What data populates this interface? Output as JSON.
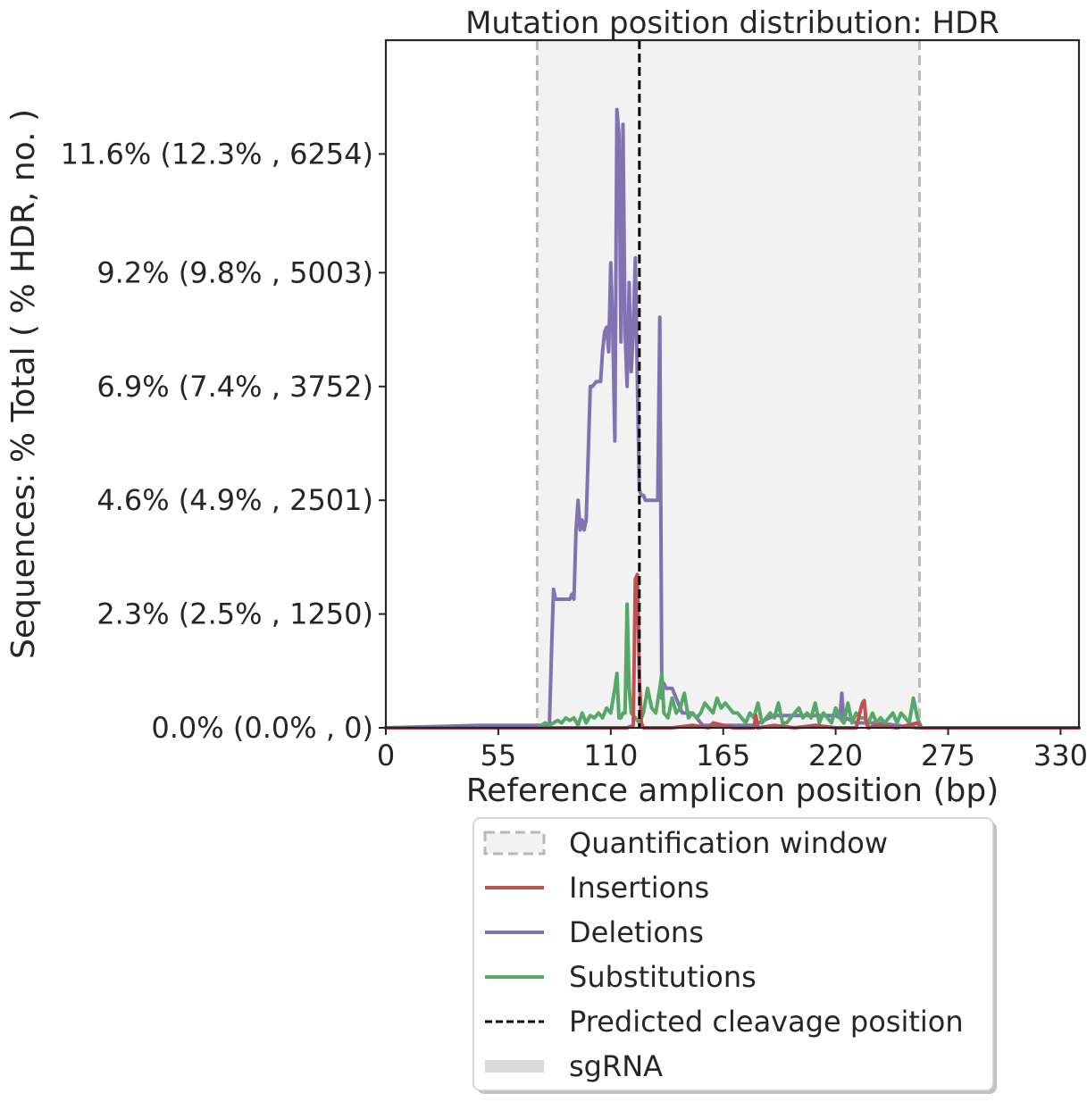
{
  "chart_data": {
    "type": "line",
    "title": "Mutation position distribution: HDR",
    "xlabel": "Reference amplicon position (bp)",
    "ylabel": "Sequences: % Total ( % HDR, no. )",
    "xlim": [
      0,
      339
    ],
    "ylim": [
      0,
      13.9
    ],
    "x_ticks": [
      0,
      55,
      110,
      165,
      220,
      275,
      330
    ],
    "y_ticks": [
      {
        "value": 0.0,
        "label": "0.0% (0.0% , 0)"
      },
      {
        "value": 2.3,
        "label": "2.3% (2.5% , 1250)"
      },
      {
        "value": 4.6,
        "label": "4.6% (4.9% , 2501)"
      },
      {
        "value": 6.9,
        "label": "6.9% (7.4% , 3752)"
      },
      {
        "value": 9.2,
        "label": "9.2% (9.8% , 5003)"
      },
      {
        "value": 11.6,
        "label": "11.6% (12.3% , 6254)"
      }
    ],
    "quantification_window": [
      74,
      261
    ],
    "cleavage_position": 124,
    "grid": false,
    "legend_placement": "below",
    "series": [
      {
        "name": "Insertions",
        "color": "#c44e52",
        "x": [
          0,
          74,
          118,
          121,
          122,
          123,
          124,
          125,
          126,
          140,
          150,
          158,
          160,
          170,
          180,
          181,
          182,
          190,
          200,
          210,
          220,
          230,
          233,
          234,
          235,
          236,
          240,
          250,
          260,
          261,
          262,
          339
        ],
        "y": [
          0,
          0,
          0,
          0.05,
          3.0,
          3.1,
          1.0,
          0.1,
          0,
          0,
          0.05,
          0,
          0.1,
          0,
          0,
          0.25,
          0,
          0.05,
          0,
          0.05,
          0,
          0,
          0.5,
          0.55,
          0.1,
          0,
          0.05,
          0,
          0.1,
          0.05,
          0,
          0
        ]
      },
      {
        "name": "Deletions",
        "color": "#8172b2",
        "x": [
          0,
          46,
          80,
          81,
          82,
          83,
          84,
          90,
          91,
          92,
          93,
          94,
          95,
          96,
          97,
          98,
          100,
          101,
          103,
          104,
          105,
          106,
          107,
          108,
          109,
          110,
          111,
          112,
          113,
          114,
          115,
          116,
          117,
          118,
          119,
          120,
          121,
          122,
          123,
          124,
          125,
          126,
          127,
          128,
          129,
          130,
          131,
          132,
          133,
          134,
          135,
          136,
          137,
          138,
          139,
          140,
          145,
          150,
          155,
          160,
          170,
          180,
          190,
          200,
          210,
          220,
          222,
          223,
          224,
          225,
          230,
          240,
          250,
          260,
          262,
          339
        ],
        "y": [
          0,
          0.05,
          0.05,
          1.5,
          2.8,
          2.6,
          2.6,
          2.6,
          2.7,
          2.6,
          4.0,
          4.6,
          4.0,
          4.2,
          4.0,
          4.2,
          6.9,
          6.9,
          7.0,
          7.0,
          7.0,
          7.6,
          8.0,
          8.1,
          7.6,
          9.4,
          8.0,
          5.8,
          12.5,
          12.0,
          7.8,
          12.2,
          8.0,
          6.9,
          9.0,
          7.2,
          8.0,
          9.5,
          7.0,
          4.8,
          4.7,
          4.7,
          4.6,
          4.6,
          4.6,
          4.6,
          4.6,
          4.6,
          4.6,
          8.3,
          0.6,
          0.9,
          0.8,
          0.8,
          0.8,
          0.8,
          0.3,
          0.3,
          0.05,
          0.05,
          0.05,
          0.05,
          0.25,
          0.25,
          0.25,
          0.25,
          0.2,
          0.7,
          0.1,
          0.2,
          0.1,
          0.1,
          0.05,
          0,
          0,
          0
        ]
      },
      {
        "name": "Substitutions",
        "color": "#55a868",
        "x": [
          0,
          74,
          78,
          80,
          82,
          84,
          86,
          88,
          90,
          92,
          94,
          96,
          98,
          100,
          102,
          104,
          106,
          108,
          110,
          112,
          113,
          114,
          115,
          116,
          117,
          118,
          119,
          120,
          122,
          124,
          126,
          128,
          130,
          132,
          134,
          135,
          136,
          138,
          140,
          142,
          144,
          146,
          148,
          150,
          152,
          154,
          156,
          158,
          160,
          162,
          164,
          166,
          168,
          170,
          172,
          174,
          176,
          178,
          180,
          182,
          184,
          186,
          188,
          190,
          192,
          194,
          196,
          198,
          200,
          202,
          204,
          206,
          208,
          210,
          212,
          214,
          216,
          218,
          220,
          222,
          224,
          226,
          228,
          230,
          232,
          234,
          236,
          238,
          240,
          242,
          244,
          246,
          248,
          250,
          252,
          254,
          256,
          258,
          260,
          262,
          339
        ],
        "y": [
          0,
          0,
          0.1,
          0.05,
          0.1,
          0.15,
          0.1,
          0.2,
          0.15,
          0.2,
          0.05,
          0.3,
          0.1,
          0.25,
          0.2,
          0.3,
          0.2,
          0.4,
          0.3,
          0.8,
          1.1,
          0.2,
          0.2,
          0.3,
          0.3,
          2.5,
          0.8,
          0.3,
          0.2,
          0.1,
          0.3,
          0.8,
          0.4,
          0.3,
          0.8,
          1.1,
          0.3,
          0.2,
          0.6,
          0.3,
          0.4,
          0.7,
          0.2,
          0.3,
          0.2,
          0.3,
          0.5,
          0.4,
          0.3,
          0.6,
          0.4,
          0.5,
          0.4,
          0.3,
          0.3,
          0.2,
          0.1,
          0.3,
          0.2,
          0.5,
          0.1,
          0.2,
          0.3,
          0.2,
          0.5,
          0.1,
          0.1,
          0.2,
          0.3,
          0.4,
          0.2,
          0.3,
          0.2,
          0.5,
          0.1,
          0.3,
          0.2,
          0.1,
          0.4,
          0.2,
          0.1,
          0.5,
          0.1,
          0.3,
          0.2,
          0.2,
          0.1,
          0.3,
          0.1,
          0.2,
          0.1,
          0.2,
          0.3,
          0.1,
          0.3,
          0.2,
          0.1,
          0.6,
          0.2,
          0,
          0
        ]
      }
    ],
    "legend": [
      {
        "label": "Quantification window",
        "kind": "window-patch"
      },
      {
        "label": "Insertions",
        "kind": "line",
        "color": "#c44e52"
      },
      {
        "label": "Deletions",
        "kind": "line",
        "color": "#8172b2"
      },
      {
        "label": "Substitutions",
        "kind": "line",
        "color": "#55a868"
      },
      {
        "label": "Predicted cleavage position",
        "kind": "dashed",
        "color": "#000000"
      },
      {
        "label": "sgRNA",
        "kind": "bar",
        "color": "#d9d9d9"
      }
    ]
  }
}
